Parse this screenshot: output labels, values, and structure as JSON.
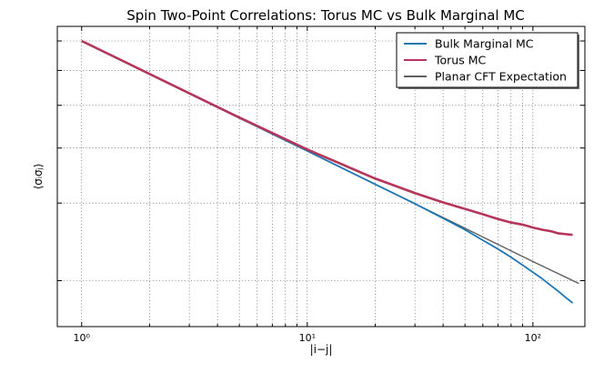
{
  "chart_data": {
    "type": "line",
    "title": "Spin Two-Point Correlations: Torus MC vs Bulk Marginal MC",
    "xlabel": "|i−j|",
    "ylabel": "⟨σᵢσⱼ⟩",
    "x_scale": "log",
    "y_scale": "log",
    "xlim": [
      0.78,
      170
    ],
    "x_ticks": [
      {
        "value": 1,
        "label": "10⁰"
      },
      {
        "value": 10,
        "label": "10¹"
      },
      {
        "value": 100,
        "label": "10²"
      }
    ],
    "y_ticks_labeled": false,
    "grid": true,
    "legend_position": "top-right",
    "series": [
      {
        "name": "Bulk Marginal MC",
        "color": "#1f77b4",
        "x": [
          1,
          2,
          5,
          10,
          20,
          30,
          40,
          50,
          60,
          70,
          80,
          90,
          100,
          110,
          120,
          130,
          140,
          150
        ],
        "y": [
          0.7,
          0.589,
          0.468,
          0.394,
          0.331,
          0.299,
          0.277,
          0.261,
          0.247,
          0.236,
          0.226,
          0.217,
          0.209,
          0.202,
          0.195,
          0.189,
          0.183,
          0.178
        ]
      },
      {
        "name": "Torus MC",
        "color": "#b5365b",
        "x": [
          1,
          2,
          5,
          10,
          20,
          30,
          40,
          50,
          60,
          70,
          80,
          90,
          100,
          110,
          120,
          130,
          140,
          150
        ],
        "y": [
          0.7,
          0.589,
          0.469,
          0.397,
          0.341,
          0.316,
          0.301,
          0.291,
          0.283,
          0.276,
          0.271,
          0.268,
          0.264,
          0.261,
          0.259,
          0.256,
          0.255,
          0.254
        ]
      },
      {
        "name": "Planar CFT Expectation",
        "color": "#606060",
        "x": [
          1,
          2,
          5,
          10,
          20,
          50,
          100,
          160
        ],
        "y": [
          0.7,
          0.589,
          0.468,
          0.394,
          0.331,
          0.263,
          0.221,
          0.197
        ]
      }
    ]
  }
}
